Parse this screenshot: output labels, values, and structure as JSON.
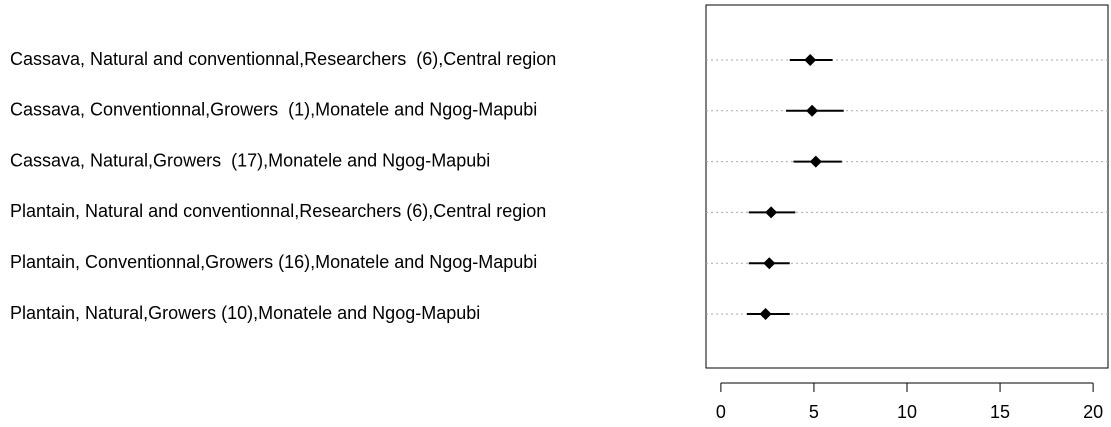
{
  "chart_data": {
    "type": "dot",
    "categories": [
      "Cassava, Natural and conventionnal,Researchers  (6),Central region",
      "Cassava, Conventionnal,Growers  (1),Monatele and Ngog-Mapubi",
      "Cassava, Natural,Growers  (17),Monatele and Ngog-Mapubi",
      "Plantain, Natural and conventionnal,Researchers (6),Central region",
      "Plantain, Conventionnal,Growers (16),Monatele and Ngog-Mapubi",
      "Plantain, Natural,Growers (10),Monatele and Ngog-Mapubi"
    ],
    "values": [
      4.8,
      4.9,
      5.1,
      2.7,
      2.6,
      2.4
    ],
    "lower": [
      3.7,
      3.5,
      3.9,
      1.5,
      1.5,
      1.4
    ],
    "upper": [
      6.0,
      6.6,
      6.5,
      4.0,
      3.7,
      3.7
    ],
    "color": "#000000",
    "xlim": [
      -0.8,
      20.8
    ],
    "xticks": [
      0,
      5,
      10,
      15,
      20
    ],
    "grid": true
  }
}
